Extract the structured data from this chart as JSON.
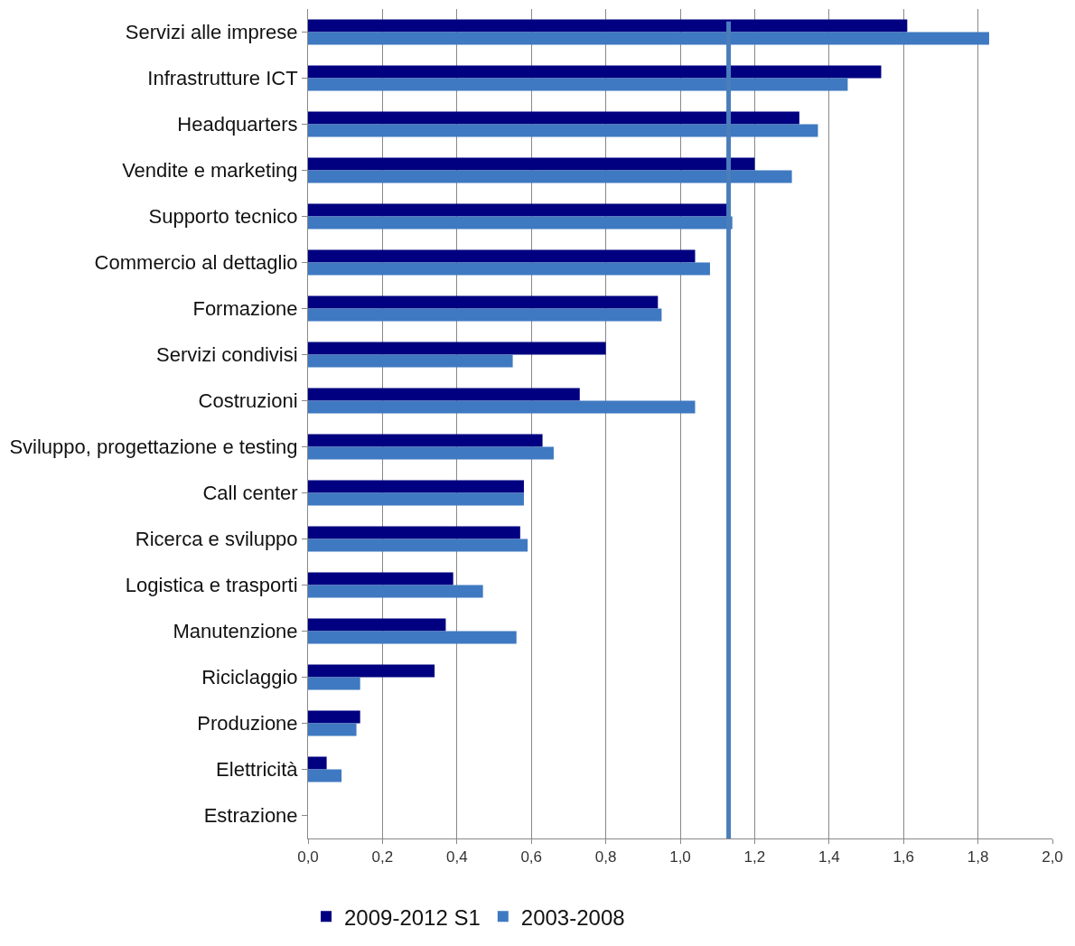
{
  "chart_data": {
    "type": "bar",
    "orientation": "horizontal",
    "categories": [
      "Servizi alle imprese",
      "Infrastrutture ICT",
      "Headquarters",
      "Vendite e marketing",
      "Supporto tecnico",
      "Commercio al dettaglio",
      "Formazione",
      "Servizi condivisi",
      "Costruzioni",
      "Sviluppo, progettazione e testing",
      "Call center",
      "Ricerca e sviluppo",
      "Logistica e trasporti",
      "Manutenzione",
      "Riciclaggio",
      "Produzione",
      "Elettricità",
      "Estrazione"
    ],
    "series": [
      {
        "name": "2009-2012 S1",
        "color": "#000080",
        "values": [
          1.61,
          1.54,
          1.32,
          1.2,
          1.13,
          1.04,
          0.94,
          0.8,
          0.73,
          0.63,
          0.58,
          0.57,
          0.39,
          0.37,
          0.34,
          0.14,
          0.05,
          0
        ]
      },
      {
        "name": "2003-2008",
        "color": "#3f79c1",
        "values": [
          1.83,
          1.45,
          1.37,
          1.3,
          1.14,
          1.08,
          0.95,
          0.55,
          1.04,
          0.66,
          0.58,
          0.59,
          0.47,
          0.56,
          0.14,
          0.13,
          0.09,
          0
        ]
      }
    ],
    "xlim": [
      0,
      2.0
    ],
    "xticks": [
      {
        "value": 0,
        "label": "0,0"
      },
      {
        "value": 0.2,
        "label": "0,2"
      },
      {
        "value": 0.4,
        "label": "0,4"
      },
      {
        "value": 0.6,
        "label": "0,6"
      },
      {
        "value": 0.8,
        "label": "0,8"
      },
      {
        "value": 1.0,
        "label": "1,0"
      },
      {
        "value": 1.2,
        "label": "1,2"
      },
      {
        "value": 1.4,
        "label": "1,4"
      },
      {
        "value": 1.6,
        "label": "1,6"
      },
      {
        "value": 1.8,
        "label": "1,8"
      },
      {
        "value": 2.0,
        "label": "2,0"
      }
    ],
    "grid": "x",
    "legend": "bottom",
    "ref_lines": [
      {
        "axis": "x",
        "value": 1.13,
        "color": "#4a7ebb"
      }
    ]
  }
}
